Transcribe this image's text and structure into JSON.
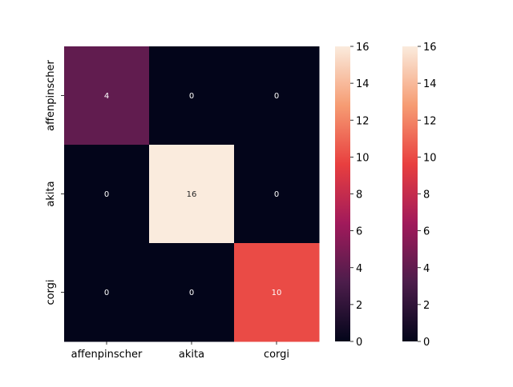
{
  "chart_data": {
    "type": "heatmap",
    "x_categories": [
      "affenpinscher",
      "akita",
      "corgi"
    ],
    "y_categories": [
      "affenpinscher",
      "akita",
      "corgi"
    ],
    "values": [
      [
        4,
        0,
        0
      ],
      [
        0,
        16,
        0
      ],
      [
        0,
        0,
        10
      ]
    ],
    "value_labels": [
      [
        "4",
        "0",
        "0"
      ],
      [
        "0",
        "16",
        "0"
      ],
      [
        "0",
        "0",
        "10"
      ]
    ],
    "title": "",
    "xlabel": "",
    "ylabel": "",
    "colormap": "rocket",
    "value_range": [
      0,
      16
    ],
    "colorbars": [
      {
        "ticks": [
          0,
          2,
          4,
          6,
          8,
          10,
          12,
          14,
          16
        ],
        "tick_labels": [
          "0",
          "2",
          "4",
          "6",
          "8",
          "10",
          "12",
          "14",
          "16"
        ]
      },
      {
        "ticks": [
          0,
          2,
          4,
          6,
          8,
          10,
          12,
          14,
          16
        ],
        "tick_labels": [
          "0",
          "2",
          "4",
          "6",
          "8",
          "10",
          "12",
          "14",
          "16"
        ]
      }
    ],
    "colors": {
      "stops": [
        "#03051a",
        "#4c1d4b",
        "#a11a5b",
        "#e83f3f",
        "#f69c73",
        "#faebdd"
      ]
    }
  }
}
